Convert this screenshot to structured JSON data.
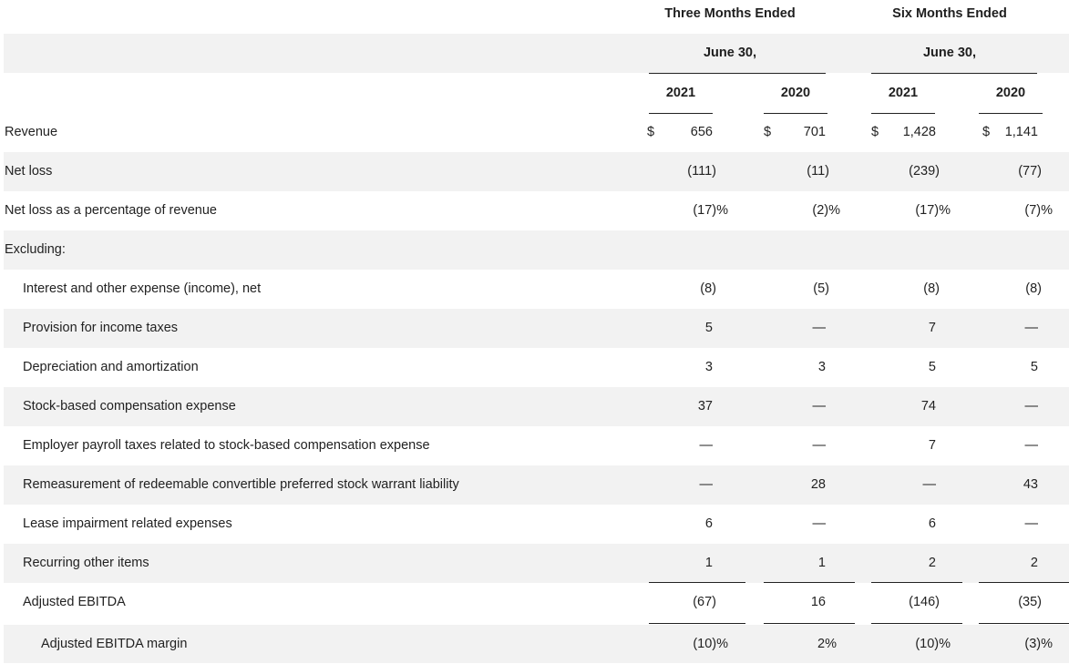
{
  "header": {
    "three_months": "Three Months Ended",
    "six_months": "Six Months Ended",
    "period_end": "June 30,",
    "years": [
      "2021",
      "2020",
      "2021",
      "2020"
    ]
  },
  "currency_symbol": "$",
  "rows": [
    {
      "label": "Revenue",
      "values": [
        "656",
        "701",
        "1,428",
        "1,141"
      ]
    },
    {
      "label": "Net loss",
      "values": [
        "(111)",
        "(11)",
        "(239)",
        "(77)"
      ]
    },
    {
      "label": "Net loss as a percentage of revenue",
      "values": [
        "(17)%",
        "(2)%",
        "(17)%",
        "(7)%"
      ]
    },
    {
      "label": "Excluding:",
      "values": [
        "",
        "",
        "",
        ""
      ]
    },
    {
      "label": "Interest and other expense (income), net",
      "values": [
        "(8)",
        "(5)",
        "(8)",
        "(8)"
      ]
    },
    {
      "label": "Provision for income taxes",
      "values": [
        "5",
        "—",
        "7",
        "—"
      ]
    },
    {
      "label": "Depreciation and amortization",
      "values": [
        "3",
        "3",
        "5",
        "5"
      ]
    },
    {
      "label": "Stock-based compensation expense",
      "values": [
        "37",
        "—",
        "74",
        "—"
      ]
    },
    {
      "label": "Employer payroll taxes related to stock-based compensation expense",
      "values": [
        "—",
        "—",
        "7",
        "—"
      ]
    },
    {
      "label": "Remeasurement of redeemable convertible preferred stock warrant liability",
      "values": [
        "—",
        "28",
        "—",
        "43"
      ]
    },
    {
      "label": "Lease impairment related expenses",
      "values": [
        "6",
        "—",
        "6",
        "—"
      ]
    },
    {
      "label": "Recurring other items",
      "values": [
        "1",
        "1",
        "2",
        "2"
      ]
    },
    {
      "label": "Adjusted EBITDA",
      "values": [
        "(67)",
        "16",
        "(146)",
        "(35)"
      ]
    },
    {
      "label": "Adjusted EBITDA margin",
      "values": [
        "(10)%",
        "2%",
        "(10)%",
        "(3)%"
      ]
    }
  ]
}
